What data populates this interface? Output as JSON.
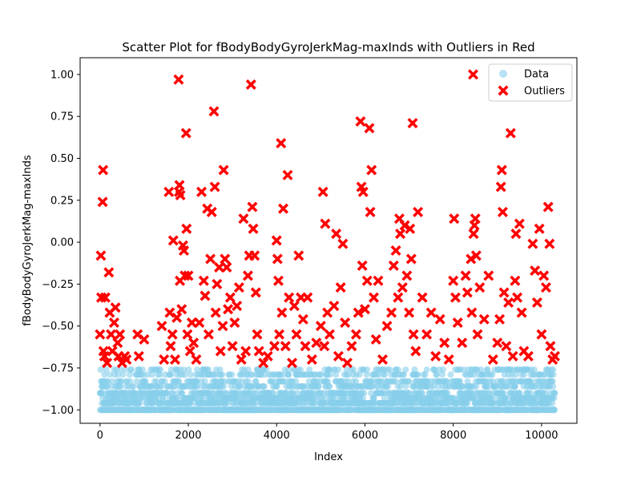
{
  "chart_data": {
    "type": "scatter",
    "title": "Scatter Plot for fBodyBodyGyroJerkMag-maxInds with Outliers in Red",
    "xlabel": "Index",
    "ylabel": "fBodyBodyGyroJerkMag-maxInds",
    "xlim": [
      -450,
      10800
    ],
    "ylim": [
      -1.08,
      1.1
    ],
    "xticks": [
      0,
      2000,
      4000,
      6000,
      8000,
      10000
    ],
    "yticks": [
      -1.0,
      -0.75,
      -0.5,
      -0.25,
      0.0,
      0.25,
      0.5,
      0.75,
      1.0
    ],
    "xtick_labels": [
      "0",
      "2000",
      "4000",
      "6000",
      "8000",
      "10000"
    ],
    "ytick_labels": [
      "−1.00",
      "−0.75",
      "−0.50",
      "−0.25",
      "0.00",
      "0.25",
      "0.50",
      "0.75",
      "1.00"
    ],
    "legend_position": "top-right",
    "series": [
      {
        "name": "Data",
        "color": "#87CEEB",
        "marker": "circle",
        "x_range": [
          0,
          10299
        ],
        "y_values_observed": [
          -1.0,
          -0.96,
          -0.93,
          -0.9,
          -0.86,
          -0.83,
          -0.79,
          -0.76
        ]
      },
      {
        "name": "Outliers",
        "color": "#FF0000",
        "marker": "x",
        "points": [
          [
            0,
            -0.55
          ],
          [
            20,
            -0.08
          ],
          [
            30,
            -0.33
          ],
          [
            60,
            0.24
          ],
          [
            70,
            0.43
          ],
          [
            80,
            -0.65
          ],
          [
            100,
            -0.68
          ],
          [
            120,
            -0.33
          ],
          [
            160,
            -0.72
          ],
          [
            200,
            -0.18
          ],
          [
            220,
            -0.42
          ],
          [
            250,
            -0.55
          ],
          [
            280,
            -0.65
          ],
          [
            320,
            -0.48
          ],
          [
            350,
            -0.39
          ],
          [
            400,
            -0.6
          ],
          [
            420,
            -0.68
          ],
          [
            450,
            -0.55
          ],
          [
            500,
            -0.72
          ],
          [
            560,
            -0.68
          ],
          [
            600,
            -0.7
          ],
          [
            850,
            -0.55
          ],
          [
            880,
            -0.68
          ],
          [
            1000,
            -0.58
          ],
          [
            1400,
            -0.5
          ],
          [
            1450,
            -0.7
          ],
          [
            1560,
            0.3
          ],
          [
            1580,
            -0.42
          ],
          [
            1600,
            -0.62
          ],
          [
            1640,
            -0.55
          ],
          [
            1660,
            0.01
          ],
          [
            1700,
            -0.7
          ],
          [
            1740,
            -0.45
          ],
          [
            1780,
            0.97
          ],
          [
            1790,
            0.3
          ],
          [
            1800,
            0.34
          ],
          [
            1810,
            -0.23
          ],
          [
            1820,
            0.28
          ],
          [
            1850,
            -0.4
          ],
          [
            1880,
            -0.02
          ],
          [
            1900,
            -0.05
          ],
          [
            1920,
            -0.2
          ],
          [
            1950,
            0.65
          ],
          [
            1960,
            0.08
          ],
          [
            1980,
            -0.55
          ],
          [
            2000,
            -0.2
          ],
          [
            2040,
            -0.65
          ],
          [
            2080,
            -0.48
          ],
          [
            2120,
            -0.6
          ],
          [
            2180,
            -0.7
          ],
          [
            2250,
            -0.48
          ],
          [
            2300,
            0.3
          ],
          [
            2350,
            -0.23
          ],
          [
            2380,
            -0.32
          ],
          [
            2430,
            0.2
          ],
          [
            2460,
            -0.55
          ],
          [
            2500,
            -0.1
          ],
          [
            2530,
            0.18
          ],
          [
            2580,
            0.78
          ],
          [
            2600,
            0.33
          ],
          [
            2620,
            -0.42
          ],
          [
            2650,
            -0.25
          ],
          [
            2700,
            -0.15
          ],
          [
            2730,
            -0.65
          ],
          [
            2780,
            -0.5
          ],
          [
            2800,
            0.43
          ],
          [
            2830,
            -0.1
          ],
          [
            2870,
            -0.15
          ],
          [
            2900,
            -0.4
          ],
          [
            2950,
            -0.33
          ],
          [
            3000,
            -0.62
          ],
          [
            3050,
            -0.48
          ],
          [
            3100,
            -0.38
          ],
          [
            3150,
            -0.27
          ],
          [
            3200,
            -0.7
          ],
          [
            3250,
            0.14
          ],
          [
            3300,
            -0.65
          ],
          [
            3350,
            -0.2
          ],
          [
            3380,
            -0.08
          ],
          [
            3420,
            0.94
          ],
          [
            3450,
            0.21
          ],
          [
            3470,
            0.08
          ],
          [
            3500,
            -0.08
          ],
          [
            3530,
            -0.3
          ],
          [
            3560,
            -0.55
          ],
          [
            3600,
            -0.65
          ],
          [
            3700,
            -0.72
          ],
          [
            3800,
            -0.68
          ],
          [
            3950,
            -0.62
          ],
          [
            4000,
            0.01
          ],
          [
            4020,
            -0.1
          ],
          [
            4040,
            -0.23
          ],
          [
            4060,
            -0.55
          ],
          [
            4100,
            0.59
          ],
          [
            4120,
            -0.42
          ],
          [
            4150,
            0.2
          ],
          [
            4200,
            -0.62
          ],
          [
            4250,
            0.4
          ],
          [
            4280,
            -0.33
          ],
          [
            4350,
            -0.72
          ],
          [
            4400,
            -0.38
          ],
          [
            4450,
            -0.55
          ],
          [
            4500,
            -0.08
          ],
          [
            4550,
            -0.33
          ],
          [
            4600,
            -0.46
          ],
          [
            4650,
            -0.62
          ],
          [
            4700,
            -0.33
          ],
          [
            4800,
            -0.7
          ],
          [
            4900,
            -0.6
          ],
          [
            5000,
            -0.5
          ],
          [
            5050,
            0.3
          ],
          [
            5080,
            -0.62
          ],
          [
            5100,
            0.11
          ],
          [
            5150,
            -0.42
          ],
          [
            5200,
            -0.55
          ],
          [
            5300,
            -0.38
          ],
          [
            5350,
            0.05
          ],
          [
            5400,
            -0.68
          ],
          [
            5450,
            -0.27
          ],
          [
            5500,
            -0.01
          ],
          [
            5550,
            -0.48
          ],
          [
            5600,
            -0.72
          ],
          [
            5700,
            -0.62
          ],
          [
            5800,
            -0.55
          ],
          [
            5850,
            -0.42
          ],
          [
            5900,
            0.72
          ],
          [
            5920,
            0.33
          ],
          [
            5940,
            -0.14
          ],
          [
            5960,
            0.3
          ],
          [
            6000,
            -0.4
          ],
          [
            6050,
            -0.23
          ],
          [
            6100,
            0.68
          ],
          [
            6120,
            0.18
          ],
          [
            6150,
            0.43
          ],
          [
            6200,
            -0.33
          ],
          [
            6250,
            -0.58
          ],
          [
            6300,
            -0.23
          ],
          [
            6400,
            -0.7
          ],
          [
            6500,
            -0.5
          ],
          [
            6600,
            -0.42
          ],
          [
            6650,
            -0.14
          ],
          [
            6700,
            -0.05
          ],
          [
            6750,
            -0.33
          ],
          [
            6780,
            0.14
          ],
          [
            6800,
            0.05
          ],
          [
            6850,
            -0.27
          ],
          [
            6900,
            0.1
          ],
          [
            6950,
            -0.2
          ],
          [
            7000,
            -0.42
          ],
          [
            7020,
            0.08
          ],
          [
            7050,
            -0.1
          ],
          [
            7080,
            0.71
          ],
          [
            7100,
            -0.55
          ],
          [
            7150,
            -0.65
          ],
          [
            7200,
            0.18
          ],
          [
            7300,
            -0.33
          ],
          [
            7400,
            -0.55
          ],
          [
            7500,
            -0.42
          ],
          [
            7600,
            -0.68
          ],
          [
            7700,
            -0.46
          ],
          [
            7800,
            -0.6
          ],
          [
            7900,
            -0.7
          ],
          [
            8000,
            -0.23
          ],
          [
            8020,
            0.14
          ],
          [
            8050,
            -0.33
          ],
          [
            8100,
            -0.48
          ],
          [
            8200,
            -0.6
          ],
          [
            8280,
            -0.2
          ],
          [
            8320,
            -0.3
          ],
          [
            8400,
            -0.1
          ],
          [
            8420,
            -0.42
          ],
          [
            8450,
            1.0
          ],
          [
            8460,
            0.05
          ],
          [
            8480,
            0.1
          ],
          [
            8500,
            0.14
          ],
          [
            8520,
            -0.08
          ],
          [
            8550,
            -0.55
          ],
          [
            8600,
            -0.27
          ],
          [
            8700,
            -0.46
          ],
          [
            8800,
            -0.2
          ],
          [
            8900,
            -0.7
          ],
          [
            9000,
            -0.6
          ],
          [
            9050,
            -0.46
          ],
          [
            9080,
            0.33
          ],
          [
            9100,
            0.43
          ],
          [
            9120,
            0.18
          ],
          [
            9150,
            -0.3
          ],
          [
            9200,
            -0.62
          ],
          [
            9250,
            -0.36
          ],
          [
            9300,
            0.65
          ],
          [
            9350,
            -0.68
          ],
          [
            9400,
            -0.23
          ],
          [
            9420,
            0.05
          ],
          [
            9450,
            -0.33
          ],
          [
            9500,
            0.11
          ],
          [
            9550,
            -0.42
          ],
          [
            9600,
            -0.65
          ],
          [
            9700,
            -0.68
          ],
          [
            9800,
            -0.01
          ],
          [
            9850,
            -0.17
          ],
          [
            9900,
            -0.36
          ],
          [
            9950,
            0.08
          ],
          [
            10000,
            -0.55
          ],
          [
            10050,
            -0.2
          ],
          [
            10100,
            -0.27
          ],
          [
            10150,
            0.21
          ],
          [
            10180,
            -0.01
          ],
          [
            10200,
            -0.62
          ],
          [
            10250,
            -0.7
          ],
          [
            10300,
            -0.68
          ]
        ]
      }
    ]
  }
}
